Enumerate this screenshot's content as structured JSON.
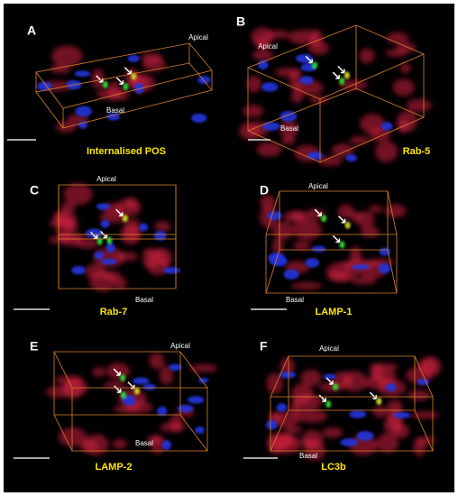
{
  "panels": [
    {
      "letter": "A",
      "apical": "Apical",
      "basal": "Basal",
      "caption": "Internalised POS"
    },
    {
      "letter": "B",
      "apical": "Apical",
      "basal": "Basal",
      "caption": "Rab-5"
    },
    {
      "letter": "C",
      "apical": "Apical",
      "basal": "Basal",
      "caption": "Rab-7"
    },
    {
      "letter": "D",
      "apical": "Apical",
      "basal": "Basal",
      "caption": "LAMP-1"
    },
    {
      "letter": "E",
      "apical": "Apical",
      "basal": "Basal",
      "caption": "LAMP-2"
    },
    {
      "letter": "F",
      "apical": "Apical",
      "basal": "Basal",
      "caption": "LC3b"
    }
  ]
}
